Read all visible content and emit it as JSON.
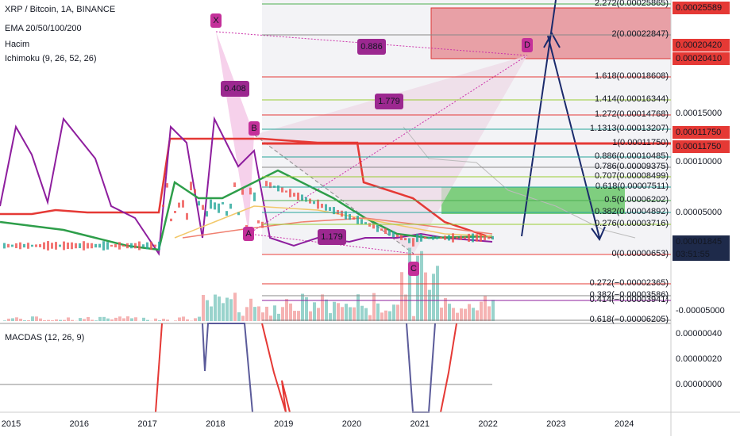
{
  "legend": {
    "symbol": "XRP / Bitcoin, 1A, BINANCE",
    "ema": "EMA 20/50/100/200",
    "volume": "Hacim",
    "ichimoku": "Ichimoku (9, 26, 52, 26)"
  },
  "price_axis": [
    "0.00025589",
    "0.00020420",
    "0.00020410",
    "0.00015000",
    "0.00011750",
    "0.00011750",
    "0.00010000",
    "0.00005000",
    "0.00001845",
    "03:51:55",
    "-0.00005000"
  ],
  "fib_levels": [
    "2.272(0.00025865)",
    "2(0.00022847)",
    "1.618(0.00018608)",
    "1.414(0.00016344)",
    "1.272(0.00014768)",
    "1.1313(0.00013207)",
    "1(0.00011750)",
    "0.886(0.00010485)",
    "0.786(0.00009375)",
    "0.707(0.00008499)",
    "0.618(0.00007511)",
    "0.5(0.00006202)",
    "0.382(0.00004892)",
    "0.276(0.00003716)",
    "0(0.00000653)",
    "0.272(−0.00002365)",
    "0.382(−0.00003586)",
    "0.414(−0.00003941)",
    "0.618(−0.00006205)"
  ],
  "points": [
    "X",
    "A",
    "B",
    "C",
    "D"
  ],
  "ratios": [
    "0.886",
    "0.408",
    "1.779",
    "1.179"
  ],
  "macd": {
    "title": "MACDAS (12, 26, 9)",
    "axis": [
      "0.00000040",
      "0.00000020",
      "0.00000000"
    ]
  },
  "time_axis": [
    "2015",
    "2016",
    "2017",
    "2018",
    "2019",
    "2020",
    "2021",
    "2022",
    "2023",
    "2024"
  ]
}
